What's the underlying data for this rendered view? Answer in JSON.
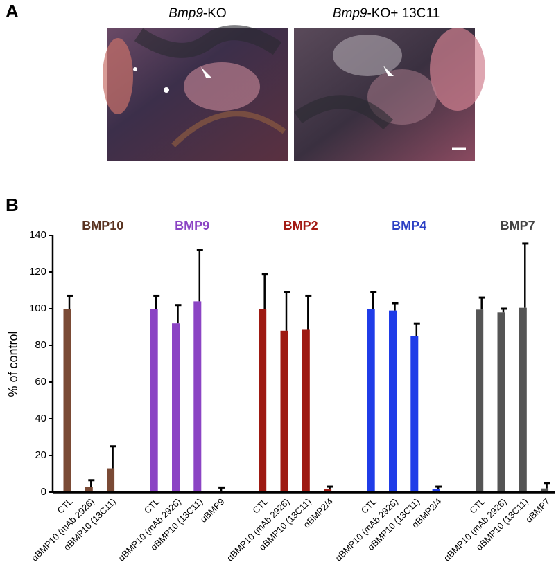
{
  "panel_a": {
    "label": "A",
    "images": [
      {
        "label_italic": "Bmp9",
        "label_rest": "-KO"
      },
      {
        "label_italic": "Bmp9",
        "label_rest": "-KO+ 13C11"
      }
    ]
  },
  "chart_data": {
    "type": "grouped_bar",
    "panel_label": "B",
    "y_label": "% of control",
    "ylim": [
      0,
      140
    ],
    "yticks": [
      0,
      20,
      40,
      60,
      80,
      100,
      120,
      140
    ],
    "groups": [
      {
        "name": "BMP10",
        "title_color": "#5a3321",
        "color": "#7a4a35",
        "categories": [
          "CTL",
          "αBMP10 (mAb 2926)",
          "αBMP10 (13C11)"
        ],
        "values": [
          100,
          3,
          13
        ],
        "errors": [
          7,
          3.5,
          12
        ]
      },
      {
        "name": "BMP9",
        "title_color": "#8b44c4",
        "color": "#8b44c4",
        "categories": [
          "CTL",
          "αBMP10 (mAb 2926)",
          "αBMP10 (13C11)",
          "αBMP9"
        ],
        "values": [
          100,
          92,
          104,
          0.5
        ],
        "errors": [
          7,
          10,
          28,
          2
        ]
      },
      {
        "name": "BMP2",
        "title_color": "#a31a13",
        "color": "#9e1a12",
        "categories": [
          "CTL",
          "αBMP10 (mAb 2926)",
          "αBMP10 (13C11)",
          "αBMP2/4"
        ],
        "values": [
          100,
          88,
          88.5,
          1.5
        ],
        "errors": [
          19,
          21,
          18.5,
          1.5
        ]
      },
      {
        "name": "BMP4",
        "title_color": "#2b3fc4",
        "color": "#1f3ce8",
        "categories": [
          "CTL",
          "αBMP10 (mAb 2926)",
          "αBMP10 (13C11)",
          "αBMP2/4"
        ],
        "values": [
          100,
          99,
          85,
          1.5
        ],
        "errors": [
          9,
          4,
          7,
          1.5
        ]
      },
      {
        "name": "BMP7",
        "title_color": "#444444",
        "color": "#555555",
        "categories": [
          "CTL",
          "αBMP10 (mAb 2926)",
          "αBMP10 (13C11)",
          "αBMP7"
        ],
        "values": [
          99.5,
          98,
          100.5,
          2
        ],
        "errors": [
          6.5,
          2,
          35,
          3
        ]
      }
    ]
  }
}
